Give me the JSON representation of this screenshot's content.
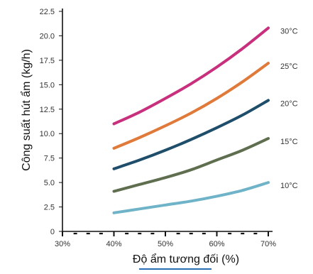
{
  "chart_data": {
    "type": "line",
    "title": "",
    "xlabel": "Độ ẩm tương đối (%)",
    "ylabel": "Công suất hút ẩm (kg/h)",
    "xlim": [
      30,
      70
    ],
    "ylim": [
      0,
      22.5
    ],
    "x_ticks": [
      "30%",
      "40%",
      "50%",
      "60%",
      "70%"
    ],
    "y_ticks": [
      "0",
      "2.5",
      "5.0",
      "7.5",
      "10.0",
      "12.5",
      "15.0",
      "17.5",
      "20.0",
      "22.5"
    ],
    "grid": false,
    "legend": "right",
    "x": [
      40,
      45,
      50,
      55,
      60,
      65,
      70
    ],
    "series": [
      {
        "name": "30°C",
        "color": "#C8307E",
        "values": [
          11.0,
          12.2,
          13.6,
          15.1,
          16.8,
          18.7,
          20.8
        ]
      },
      {
        "name": "25°C",
        "color": "#E07A3A",
        "values": [
          8.5,
          9.6,
          10.8,
          12.1,
          13.6,
          15.3,
          17.2
        ]
      },
      {
        "name": "20°C",
        "color": "#1F4E6B",
        "values": [
          6.4,
          7.3,
          8.3,
          9.4,
          10.6,
          11.9,
          13.4
        ]
      },
      {
        "name": "15°C",
        "color": "#5E6E4E",
        "values": [
          4.1,
          4.8,
          5.5,
          6.3,
          7.3,
          8.3,
          9.5
        ]
      },
      {
        "name": "10°C",
        "color": "#6FB3C8",
        "values": [
          1.9,
          2.3,
          2.7,
          3.1,
          3.6,
          4.2,
          5.0
        ]
      }
    ]
  }
}
